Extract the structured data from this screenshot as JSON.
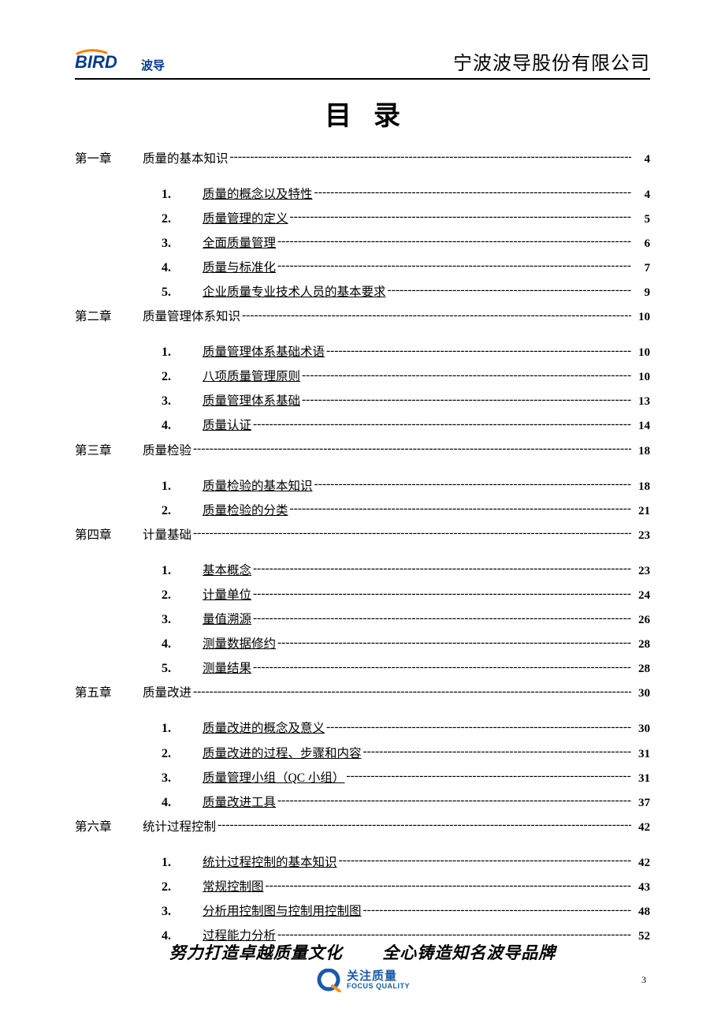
{
  "colors": {
    "logo_blue": "#003a8c",
    "logo_orange": "#f08300",
    "link_color": "#000000",
    "rule_color": "#000000",
    "fq_blue": "#1a5aa8",
    "fq_orange": "#f7931e",
    "background": "#ffffff"
  },
  "typography": {
    "body_font": "SimSun",
    "title_fontsize_pt": 26,
    "body_fontsize_pt": 12,
    "subnum_font": "Times New Roman",
    "slogan_font": "STXingkai"
  },
  "header": {
    "logo_text_en": "BIRD",
    "logo_text_cn": "波导",
    "company": "宁波波导股份有限公司"
  },
  "toc_title": "目录",
  "chapters": [
    {
      "label": "第一章",
      "title": "质量的基本知识",
      "page": "4",
      "subs": [
        {
          "num": "1.",
          "title": "质量的概念以及特性",
          "page": "4"
        },
        {
          "num": "2.",
          "title": "质量管理的定义",
          "page": "5"
        },
        {
          "num": "3.",
          "title": "全面质量管理",
          "page": "6"
        },
        {
          "num": "4.",
          "title": "质量与标准化",
          "page": "7"
        },
        {
          "num": "5.",
          "title": "企业质量专业技术人员的基本要求",
          "page": "9"
        }
      ]
    },
    {
      "label": "第二章",
      "title": "质量管理体系知识",
      "page": "10",
      "subs": [
        {
          "num": "1.",
          "title": "质量管理体系基础术语",
          "page": "10"
        },
        {
          "num": "2.",
          "title": "八项质量管理原则",
          "page": "10"
        },
        {
          "num": "3.",
          "title": "质量管理体系基础",
          "page": "13"
        },
        {
          "num": "4.",
          "title": "质量认证",
          "page": "14"
        }
      ]
    },
    {
      "label": "第三章",
      "title": "质量检验",
      "page": "18",
      "subs": [
        {
          "num": "1.",
          "title": "质量检验的基本知识",
          "page": "18"
        },
        {
          "num": "2.",
          "title": "质量检验的分类",
          "page": "21"
        }
      ]
    },
    {
      "label": "第四章",
      "title": "计量基础",
      "page": "23",
      "subs": [
        {
          "num": "1.",
          "title": "基本概念",
          "page": "23"
        },
        {
          "num": "2.",
          "title": "计量单位",
          "page": "24"
        },
        {
          "num": "3.",
          "title": "量值溯源",
          "page": "26"
        },
        {
          "num": "4.",
          "title": "测量数据修约",
          "page": "28"
        },
        {
          "num": "5.",
          "title": "测量结果",
          "page": "28"
        }
      ]
    },
    {
      "label": "第五章",
      "title": "质量改进",
      "page": "30",
      "subs": [
        {
          "num": "1.",
          "title": "质量改进的概念及意义",
          "page": "30"
        },
        {
          "num": "2.",
          "title": "质量改进的过程、步骤和内容",
          "page": "31"
        },
        {
          "num": "3.",
          "title": "质量管理小组（QC 小组）",
          "page": "31"
        },
        {
          "num": "4.",
          "title": "质量改进工具",
          "page": "37"
        }
      ]
    },
    {
      "label": "第六章",
      "title": "统计过程控制",
      "page": "42",
      "subs": [
        {
          "num": "1.",
          "title": "统计过程控制的基本知识",
          "page": "42"
        },
        {
          "num": "2.",
          "title": "常规控制图",
          "page": "43"
        },
        {
          "num": "3.",
          "title": "分析用控制图与控制用控制图",
          "page": "48"
        },
        {
          "num": "4.",
          "title": "过程能力分析",
          "page": "52"
        }
      ]
    }
  ],
  "footer": {
    "slogan_left": "努力打造卓越质量文化",
    "slogan_right": "全心铸造知名波导品牌",
    "focus_cn": "关注质量",
    "focus_en": "FOCUS QUALITY",
    "page_number": "3"
  }
}
